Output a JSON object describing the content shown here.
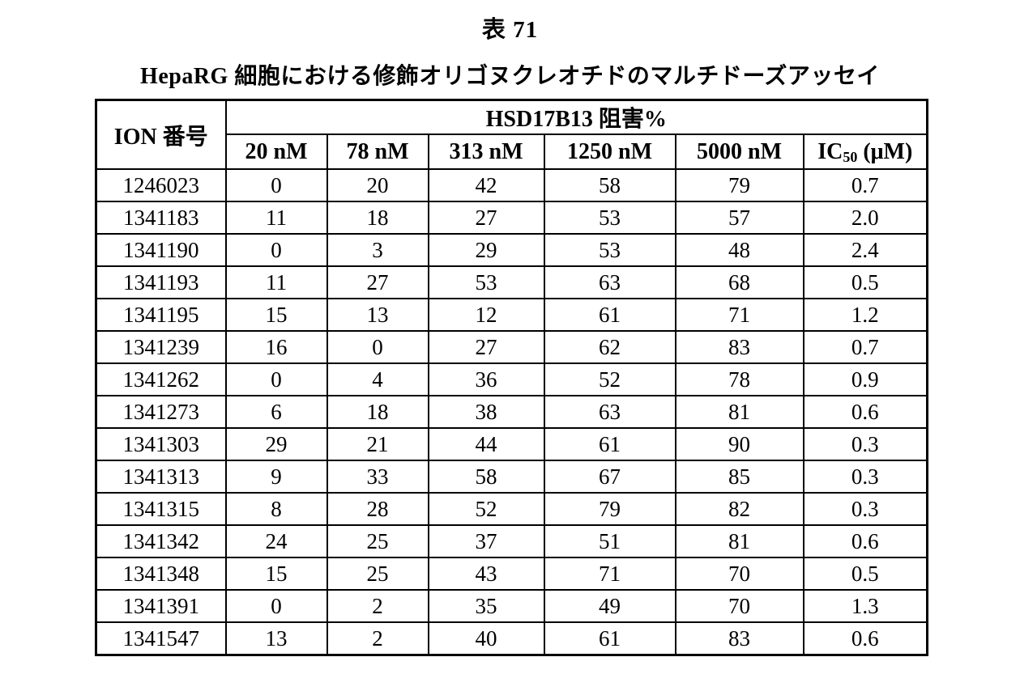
{
  "page": {
    "table_number": "表 71",
    "subtitle": "HepaRG 細胞における修飾オリゴヌクレオチドのマルチドーズアッセイ"
  },
  "table": {
    "ion_header": "ION 番号",
    "group_header": "HSD17B13 阻害%",
    "dose_headers": [
      "20 nM",
      "78 nM",
      "313 nM",
      "1250 nM",
      "5000 nM"
    ],
    "ic50_header": {
      "prefix": "IC",
      "subscript": "50",
      "suffix": " (μM)"
    },
    "rows": [
      {
        "ion": "1246023",
        "values": [
          "0",
          "20",
          "42",
          "58",
          "79",
          "0.7"
        ]
      },
      {
        "ion": "1341183",
        "values": [
          "11",
          "18",
          "27",
          "53",
          "57",
          "2.0"
        ]
      },
      {
        "ion": "1341190",
        "values": [
          "0",
          "3",
          "29",
          "53",
          "48",
          "2.4"
        ]
      },
      {
        "ion": "1341193",
        "values": [
          "11",
          "27",
          "53",
          "63",
          "68",
          "0.5"
        ]
      },
      {
        "ion": "1341195",
        "values": [
          "15",
          "13",
          "12",
          "61",
          "71",
          "1.2"
        ]
      },
      {
        "ion": "1341239",
        "values": [
          "16",
          "0",
          "27",
          "62",
          "83",
          "0.7"
        ]
      },
      {
        "ion": "1341262",
        "values": [
          "0",
          "4",
          "36",
          "52",
          "78",
          "0.9"
        ]
      },
      {
        "ion": "1341273",
        "values": [
          "6",
          "18",
          "38",
          "63",
          "81",
          "0.6"
        ]
      },
      {
        "ion": "1341303",
        "values": [
          "29",
          "21",
          "44",
          "61",
          "90",
          "0.3"
        ]
      },
      {
        "ion": "1341313",
        "values": [
          "9",
          "33",
          "58",
          "67",
          "85",
          "0.3"
        ]
      },
      {
        "ion": "1341315",
        "values": [
          "8",
          "28",
          "52",
          "79",
          "82",
          "0.3"
        ]
      },
      {
        "ion": "1341342",
        "values": [
          "24",
          "25",
          "37",
          "51",
          "81",
          "0.6"
        ]
      },
      {
        "ion": "1341348",
        "values": [
          "15",
          "25",
          "43",
          "71",
          "70",
          "0.5"
        ]
      },
      {
        "ion": "1341391",
        "values": [
          "0",
          "2",
          "35",
          "49",
          "70",
          "1.3"
        ]
      },
      {
        "ion": "1341547",
        "values": [
          "13",
          "2",
          "40",
          "61",
          "83",
          "0.6"
        ]
      }
    ]
  }
}
